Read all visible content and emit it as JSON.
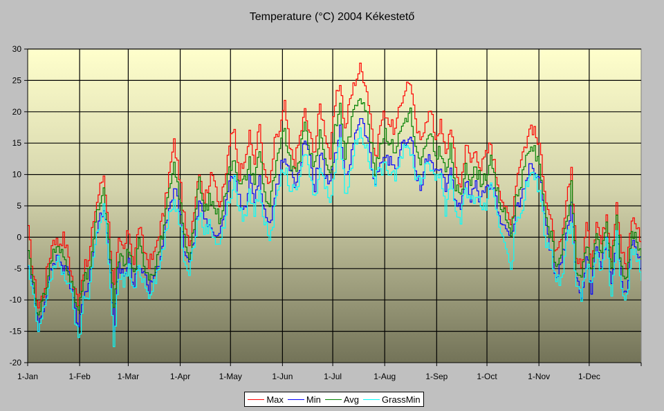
{
  "chart_data": {
    "type": "line",
    "title": "Temperature (°C) 2004 Kékestető",
    "xlabel": "",
    "ylabel": "",
    "ylim": [
      -20,
      30
    ],
    "yticks": [
      30,
      25,
      20,
      15,
      10,
      5,
      0,
      -5,
      -10,
      -15,
      -20
    ],
    "xlim_days": [
      0,
      366
    ],
    "xticks": [
      {
        "label": "1-Jan",
        "day": 0
      },
      {
        "label": "1-Feb",
        "day": 31
      },
      {
        "label": "1-Mar",
        "day": 60
      },
      {
        "label": "1-Apr",
        "day": 91
      },
      {
        "label": "1-May",
        "day": 121
      },
      {
        "label": "1-Jun",
        "day": 152
      },
      {
        "label": "1-Jul",
        "day": 182
      },
      {
        "label": "1-Aug",
        "day": 213
      },
      {
        "label": "1-Sep",
        "day": 244
      },
      {
        "label": "1-Oct",
        "day": 274
      },
      {
        "label": "1-Nov",
        "day": 305
      },
      {
        "label": "1-Dec",
        "day": 335
      }
    ],
    "grid": true,
    "legend_position": "bottom-center",
    "sample_interval_days": 3,
    "series": [
      {
        "name": "Max",
        "color": "#ff0000",
        "values": [
          1,
          -6,
          -11,
          -9,
          -4,
          0,
          -1,
          0,
          -3,
          -8,
          -10,
          -5,
          -4,
          3,
          7,
          10,
          2,
          -8,
          -1,
          -2,
          1,
          -4,
          2,
          -2,
          -4,
          -3,
          1,
          4,
          10,
          15,
          10,
          3,
          -2,
          5,
          11,
          6,
          9,
          10,
          5,
          8,
          15,
          17,
          10,
          13,
          16,
          12,
          18,
          10,
          8,
          15,
          17,
          21,
          14,
          12,
          16,
          20,
          16,
          14,
          21,
          17,
          13,
          21,
          25,
          17,
          22,
          25,
          27,
          25,
          20,
          12,
          18,
          20,
          18,
          17,
          21,
          24,
          25,
          18,
          15,
          19,
          20,
          16,
          18,
          13,
          18,
          11,
          8,
          15,
          12,
          14,
          11,
          13,
          15,
          10,
          7,
          4,
          2,
          9,
          13,
          15,
          18,
          16,
          13,
          6,
          2,
          -3,
          -1,
          5,
          11,
          -3,
          -5,
          2,
          -4,
          3,
          -1,
          4,
          -3,
          6,
          -2,
          -5,
          3,
          2,
          -1,
          -2
        ]
      },
      {
        "name": "Min",
        "color": "#0000ff",
        "values": [
          -4,
          -9,
          -14,
          -11,
          -7,
          -4,
          -3,
          -5,
          -6,
          -10,
          -14,
          -9,
          -8,
          -2,
          3,
          5,
          -3,
          -14,
          -5,
          -6,
          -4,
          -8,
          -4,
          -6,
          -8,
          -6,
          -4,
          0,
          4,
          8,
          5,
          -2,
          -4,
          0,
          6,
          2,
          3,
          1,
          0,
          4,
          8,
          10,
          6,
          4,
          9,
          6,
          10,
          4,
          2,
          6,
          11,
          13,
          10,
          9,
          11,
          16,
          12,
          8,
          14,
          10,
          8,
          13,
          17,
          9,
          12,
          17,
          19,
          17,
          13,
          8,
          12,
          13,
          12,
          11,
          14,
          15,
          16,
          11,
          8,
          12,
          13,
          10,
          11,
          8,
          11,
          5,
          4,
          9,
          6,
          8,
          6,
          7,
          9,
          6,
          3,
          1,
          0,
          4,
          6,
          10,
          11,
          10,
          8,
          1,
          -3,
          -6,
          -4,
          0,
          5,
          -7,
          -9,
          -3,
          -8,
          -1,
          -5,
          0,
          -7,
          1,
          -7,
          -9,
          -1,
          -2,
          -5,
          -4
        ]
      },
      {
        "name": "Avg",
        "color": "#008000",
        "values": [
          -2,
          -7,
          -13,
          -10,
          -6,
          -2,
          -2,
          -3,
          -5,
          -9,
          -12,
          -7,
          -6,
          0,
          5,
          7,
          -1,
          -11,
          -3,
          -4,
          -2,
          -6,
          -1,
          -4,
          -6,
          -5,
          -2,
          2,
          7,
          11,
          7,
          0,
          -3,
          2,
          9,
          4,
          6,
          5,
          3,
          6,
          11,
          13,
          8,
          9,
          12,
          9,
          14,
          7,
          5,
          10,
          14,
          17,
          12,
          10,
          13,
          18,
          14,
          11,
          17,
          13,
          10,
          17,
          21,
          13,
          17,
          21,
          23,
          21,
          16,
          10,
          15,
          17,
          15,
          14,
          17,
          19,
          20,
          14,
          11,
          15,
          16,
          13,
          14,
          10,
          14,
          8,
          6,
          12,
          9,
          11,
          9,
          10,
          12,
          8,
          5,
          3,
          1,
          6,
          9,
          12,
          15,
          13,
          10,
          3,
          0,
          -5,
          -2,
          2,
          8,
          -5,
          -7,
          -1,
          -6,
          1,
          -3,
          2,
          -5,
          3,
          -5,
          -7,
          1,
          0,
          -3,
          -3
        ]
      },
      {
        "name": "GrassMin",
        "color": "#00ffff",
        "values": [
          -5,
          -10,
          -15,
          -12,
          -8,
          -5,
          -4,
          -6,
          -7,
          -11,
          -17,
          -10,
          -9,
          -3,
          2,
          5,
          -4,
          -18,
          -6,
          -7,
          -5,
          -9,
          -5,
          -7,
          -9,
          -7,
          -5,
          -1,
          3,
          6,
          3,
          -3,
          -5,
          -1,
          4,
          1,
          2,
          0,
          -1,
          2,
          6,
          9,
          4,
          3,
          7,
          4,
          8,
          2,
          0,
          4,
          9,
          11,
          8,
          7,
          9,
          14,
          10,
          6,
          12,
          8,
          6,
          11,
          16,
          7,
          10,
          15,
          17,
          15,
          11,
          9,
          11,
          11,
          11,
          10,
          13,
          14,
          14,
          10,
          9,
          11,
          11,
          10,
          10,
          4,
          10,
          4,
          3,
          8,
          5,
          7,
          5,
          5,
          8,
          4,
          1,
          -1,
          -5,
          2,
          4,
          8,
          10,
          9,
          6,
          -1,
          -3,
          -6,
          -7,
          -1,
          3,
          -8,
          -10,
          -4,
          -8,
          -2,
          -6,
          -1,
          -10,
          0,
          -9,
          -10,
          -2,
          -3,
          -6,
          -6
        ]
      }
    ]
  }
}
